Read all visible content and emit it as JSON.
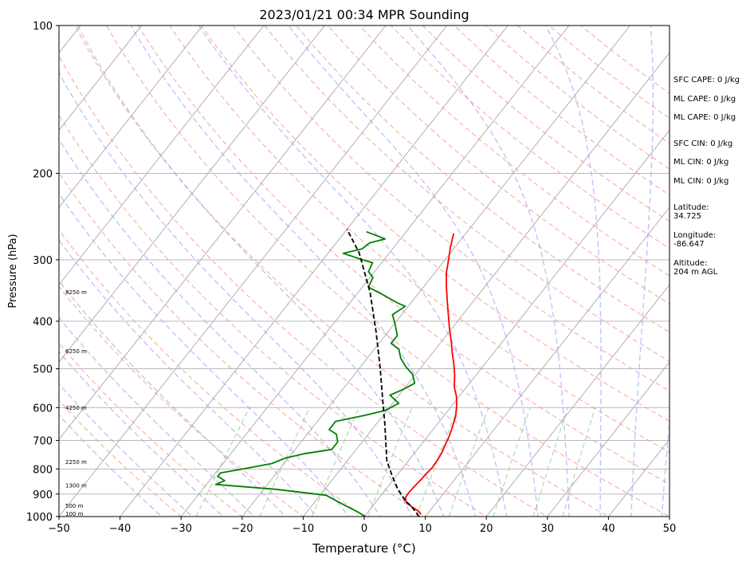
{
  "chart_data": {
    "type": "line",
    "title": "2023/01/21 00:34 MPR Sounding",
    "xlabel": "Temperature (°C)",
    "ylabel": "Pressure (hPa)",
    "xlim": [
      -50,
      50
    ],
    "ylim": [
      1000,
      100
    ],
    "y_scale": "log",
    "grid": true,
    "x_ticks": [
      -50,
      -40,
      -30,
      -20,
      -10,
      0,
      10,
      20,
      30,
      40,
      50
    ],
    "y_ticks": [
      100,
      200,
      300,
      400,
      500,
      600,
      700,
      800,
      900,
      1000
    ],
    "height_labels": [
      {
        "label": "100 m",
        "p": 988
      },
      {
        "label": "500 m",
        "p": 952
      },
      {
        "label": "1300 m",
        "p": 866
      },
      {
        "label": "2250 m",
        "p": 776
      },
      {
        "label": "4250 m",
        "p": 601
      },
      {
        "label": "6250 m",
        "p": 461
      },
      {
        "label": "8250 m",
        "p": 350
      }
    ],
    "series": [
      {
        "color": "#ff0000",
        "points": [
          {
            "t": 9.0,
            "p": 990
          },
          {
            "t": 8.2,
            "p": 975
          },
          {
            "t": 6.5,
            "p": 955
          },
          {
            "t": 5.0,
            "p": 935
          },
          {
            "t": 4.3,
            "p": 915
          },
          {
            "t": 4.2,
            "p": 895
          },
          {
            "t": 4.3,
            "p": 870
          },
          {
            "t": 4.5,
            "p": 845
          },
          {
            "t": 4.6,
            "p": 820
          },
          {
            "t": 4.8,
            "p": 795
          },
          {
            "t": 4.7,
            "p": 770
          },
          {
            "t": 4.5,
            "p": 745
          },
          {
            "t": 4.0,
            "p": 715
          },
          {
            "t": 3.5,
            "p": 685
          },
          {
            "t": 2.8,
            "p": 655
          },
          {
            "t": 2.0,
            "p": 625
          },
          {
            "t": 0.8,
            "p": 595
          },
          {
            "t": -0.4,
            "p": 570
          },
          {
            "t": -2.0,
            "p": 545
          },
          {
            "t": -3.5,
            "p": 515
          },
          {
            "t": -5.0,
            "p": 490
          },
          {
            "t": -6.7,
            "p": 465
          },
          {
            "t": -8.4,
            "p": 440
          },
          {
            "t": -10.3,
            "p": 415
          },
          {
            "t": -12.2,
            "p": 390
          },
          {
            "t": -14.2,
            "p": 365
          },
          {
            "t": -16.3,
            "p": 340
          },
          {
            "t": -18.0,
            "p": 320
          },
          {
            "t": -19.4,
            "p": 300
          },
          {
            "t": -20.8,
            "p": 282
          },
          {
            "t": -22.0,
            "p": 265
          }
        ]
      },
      {
        "color": "#008000",
        "points": [
          {
            "t": 0.2,
            "p": 1000
          },
          {
            "t": -2.0,
            "p": 975
          },
          {
            "t": -4.0,
            "p": 955
          },
          {
            "t": -6.5,
            "p": 930
          },
          {
            "t": -9.0,
            "p": 905
          },
          {
            "t": -18.0,
            "p": 880
          },
          {
            "t": -28.5,
            "p": 860
          },
          {
            "t": -27.5,
            "p": 845
          },
          {
            "t": -29.2,
            "p": 828
          },
          {
            "t": -29.2,
            "p": 815
          },
          {
            "t": -26.0,
            "p": 800
          },
          {
            "t": -22.0,
            "p": 780
          },
          {
            "t": -20.5,
            "p": 760
          },
          {
            "t": -18.0,
            "p": 745
          },
          {
            "t": -14.0,
            "p": 730
          },
          {
            "t": -14.0,
            "p": 705
          },
          {
            "t": -15.2,
            "p": 680
          },
          {
            "t": -17.0,
            "p": 665
          },
          {
            "t": -17.0,
            "p": 640
          },
          {
            "t": -13.0,
            "p": 622
          },
          {
            "t": -10.3,
            "p": 608
          },
          {
            "t": -9.0,
            "p": 588
          },
          {
            "t": -11.5,
            "p": 566
          },
          {
            "t": -10.0,
            "p": 550
          },
          {
            "t": -9.0,
            "p": 535
          },
          {
            "t": -10.5,
            "p": 513
          },
          {
            "t": -12.5,
            "p": 496
          },
          {
            "t": -14.5,
            "p": 476
          },
          {
            "t": -16.0,
            "p": 456
          },
          {
            "t": -18.0,
            "p": 444
          },
          {
            "t": -18.0,
            "p": 428
          },
          {
            "t": -20.0,
            "p": 404
          },
          {
            "t": -21.5,
            "p": 388
          },
          {
            "t": -20.5,
            "p": 373
          },
          {
            "t": -22.0,
            "p": 368
          },
          {
            "t": -26.0,
            "p": 352
          },
          {
            "t": -29.0,
            "p": 341
          },
          {
            "t": -29.5,
            "p": 326
          },
          {
            "t": -31.0,
            "p": 317
          },
          {
            "t": -31.5,
            "p": 304
          },
          {
            "t": -33.5,
            "p": 300
          },
          {
            "t": -37.5,
            "p": 291
          },
          {
            "t": -35.0,
            "p": 285
          },
          {
            "t": -34.5,
            "p": 277
          },
          {
            "t": -32.5,
            "p": 272
          },
          {
            "t": -36.5,
            "p": 263
          }
        ]
      },
      {
        "color": "#000000",
        "dashed": true,
        "points": [
          {
            "t": 9.0,
            "p": 1000
          },
          {
            "t": 6.8,
            "p": 960
          },
          {
            "t": 4.5,
            "p": 925
          },
          {
            "t": 2.0,
            "p": 880
          },
          {
            "t": 0.5,
            "p": 850
          },
          {
            "t": -1.0,
            "p": 820
          },
          {
            "t": -3.5,
            "p": 770
          },
          {
            "t": -5.5,
            "p": 720
          },
          {
            "t": -8.5,
            "p": 650
          },
          {
            "t": -12.0,
            "p": 580
          },
          {
            "t": -16.5,
            "p": 500
          },
          {
            "t": -22.0,
            "p": 420
          },
          {
            "t": -28.0,
            "p": 350
          },
          {
            "t": -35.0,
            "p": 290
          },
          {
            "t": -40.0,
            "p": 260
          }
        ]
      }
    ],
    "indices": [
      "SFC CAPE: 0 J/kg",
      "ML CAPE: 0 J/kg",
      "ML CAPE: 0 J/kg",
      "SFC CIN: 0 J/kg",
      "ML CIN: 0 J/kg",
      "ML CIN: 0 J/kg"
    ],
    "latitude": "Latitude:\n34.725",
    "longitude": "Longitude:\n-86.647",
    "altitude": "Altitude:\n204 m AGL"
  }
}
